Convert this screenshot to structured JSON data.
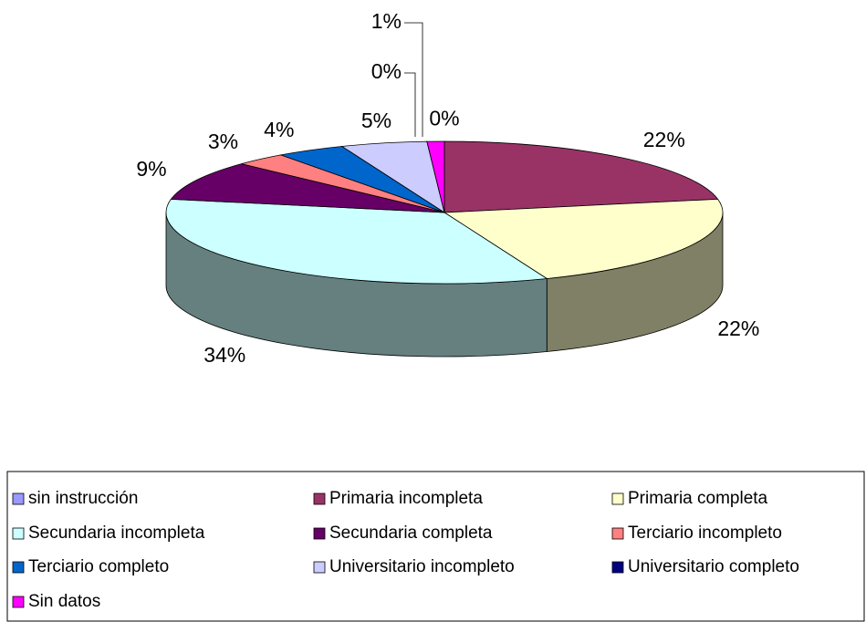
{
  "chart_data": {
    "type": "pie",
    "categories": [
      "sin instrucción",
      "Primaria incompleta",
      "Primaria completa",
      "Secundaria incompleta",
      "Secundaria completa",
      "Terciario incompleto",
      "Terciario completo",
      "Universitario incompleto",
      "Universitario completo",
      "Sin datos"
    ],
    "values": [
      0,
      22,
      22,
      34,
      9,
      3,
      4,
      5,
      0,
      1
    ],
    "value_labels": [
      "0%",
      "22%",
      "22%",
      "34%",
      "9%",
      "3%",
      "4%",
      "5%",
      "0%",
      "1%"
    ],
    "colors": [
      "#9999ff",
      "#993366",
      "#ffffcc",
      "#ccffff",
      "#660066",
      "#ff8080",
      "#0066cc",
      "#ccccff",
      "#000080",
      "#ff00ff"
    ],
    "legend": "bottom"
  }
}
